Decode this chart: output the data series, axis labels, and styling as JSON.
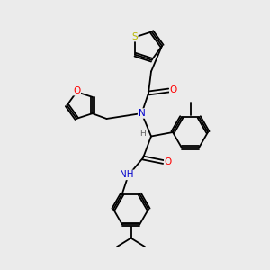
{
  "background_color": "#ebebeb",
  "atom_colors": {
    "S": "#b8b800",
    "O": "#ff0000",
    "N": "#0000cc",
    "C": "#000000",
    "H": "#606060"
  },
  "figsize": [
    3.0,
    3.0
  ],
  "dpi": 100,
  "lw": 1.3,
  "fs": 7.5,
  "fs_small": 6.5
}
